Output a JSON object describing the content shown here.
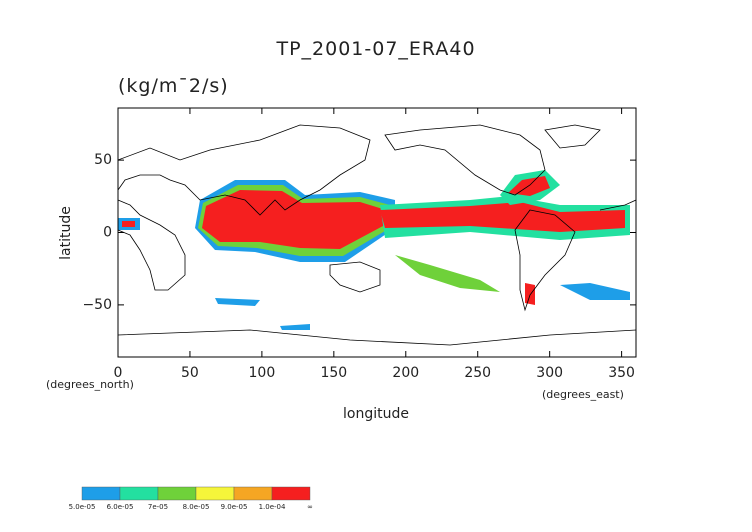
{
  "chart_data": {
    "type": "map",
    "title": "TP_2001-07_ERA40",
    "units": "(kg/m¯2/s)",
    "xlabel": "longitude",
    "ylabel": "latitude",
    "xunits": "(degrees_east)",
    "yunits": "(degrees_north)",
    "xlim": [
      0,
      360
    ],
    "ylim": [
      -86,
      86
    ],
    "xticks": [
      0,
      50,
      100,
      150,
      200,
      250,
      300,
      350
    ],
    "yticks": [
      {
        "value": -50,
        "label": "−50"
      },
      0,
      50
    ],
    "colorbar": {
      "colors": [
        "#1e9ee8",
        "#23e0a0",
        "#6fd13a",
        "#f5f53a",
        "#f5a623",
        "#f51f1f"
      ],
      "labels": [
        "5.0e-05",
        "6.0e-05",
        "7e-05",
        "8.0e-05",
        "9.0e-05",
        "1.0e-04",
        "∞"
      ]
    }
  }
}
